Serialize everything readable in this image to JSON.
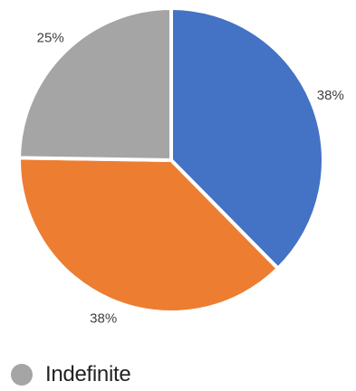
{
  "chart_data": {
    "type": "pie",
    "title": "",
    "slices": [
      {
        "label": "",
        "value": 38,
        "data_label": "38%",
        "color": "#4472C4"
      },
      {
        "label": "",
        "value": 38,
        "data_label": "38%",
        "color": "#ED7D31"
      },
      {
        "label": "",
        "value": 25,
        "data_label": "25%",
        "color": "#A5A5A5"
      }
    ],
    "start_angle": "12 o'clock",
    "direction": "clockwise",
    "legend": {
      "placement": "bottom-left",
      "entries": [
        {
          "label": "Indefinite",
          "color": "#A5A5A5"
        }
      ]
    }
  }
}
